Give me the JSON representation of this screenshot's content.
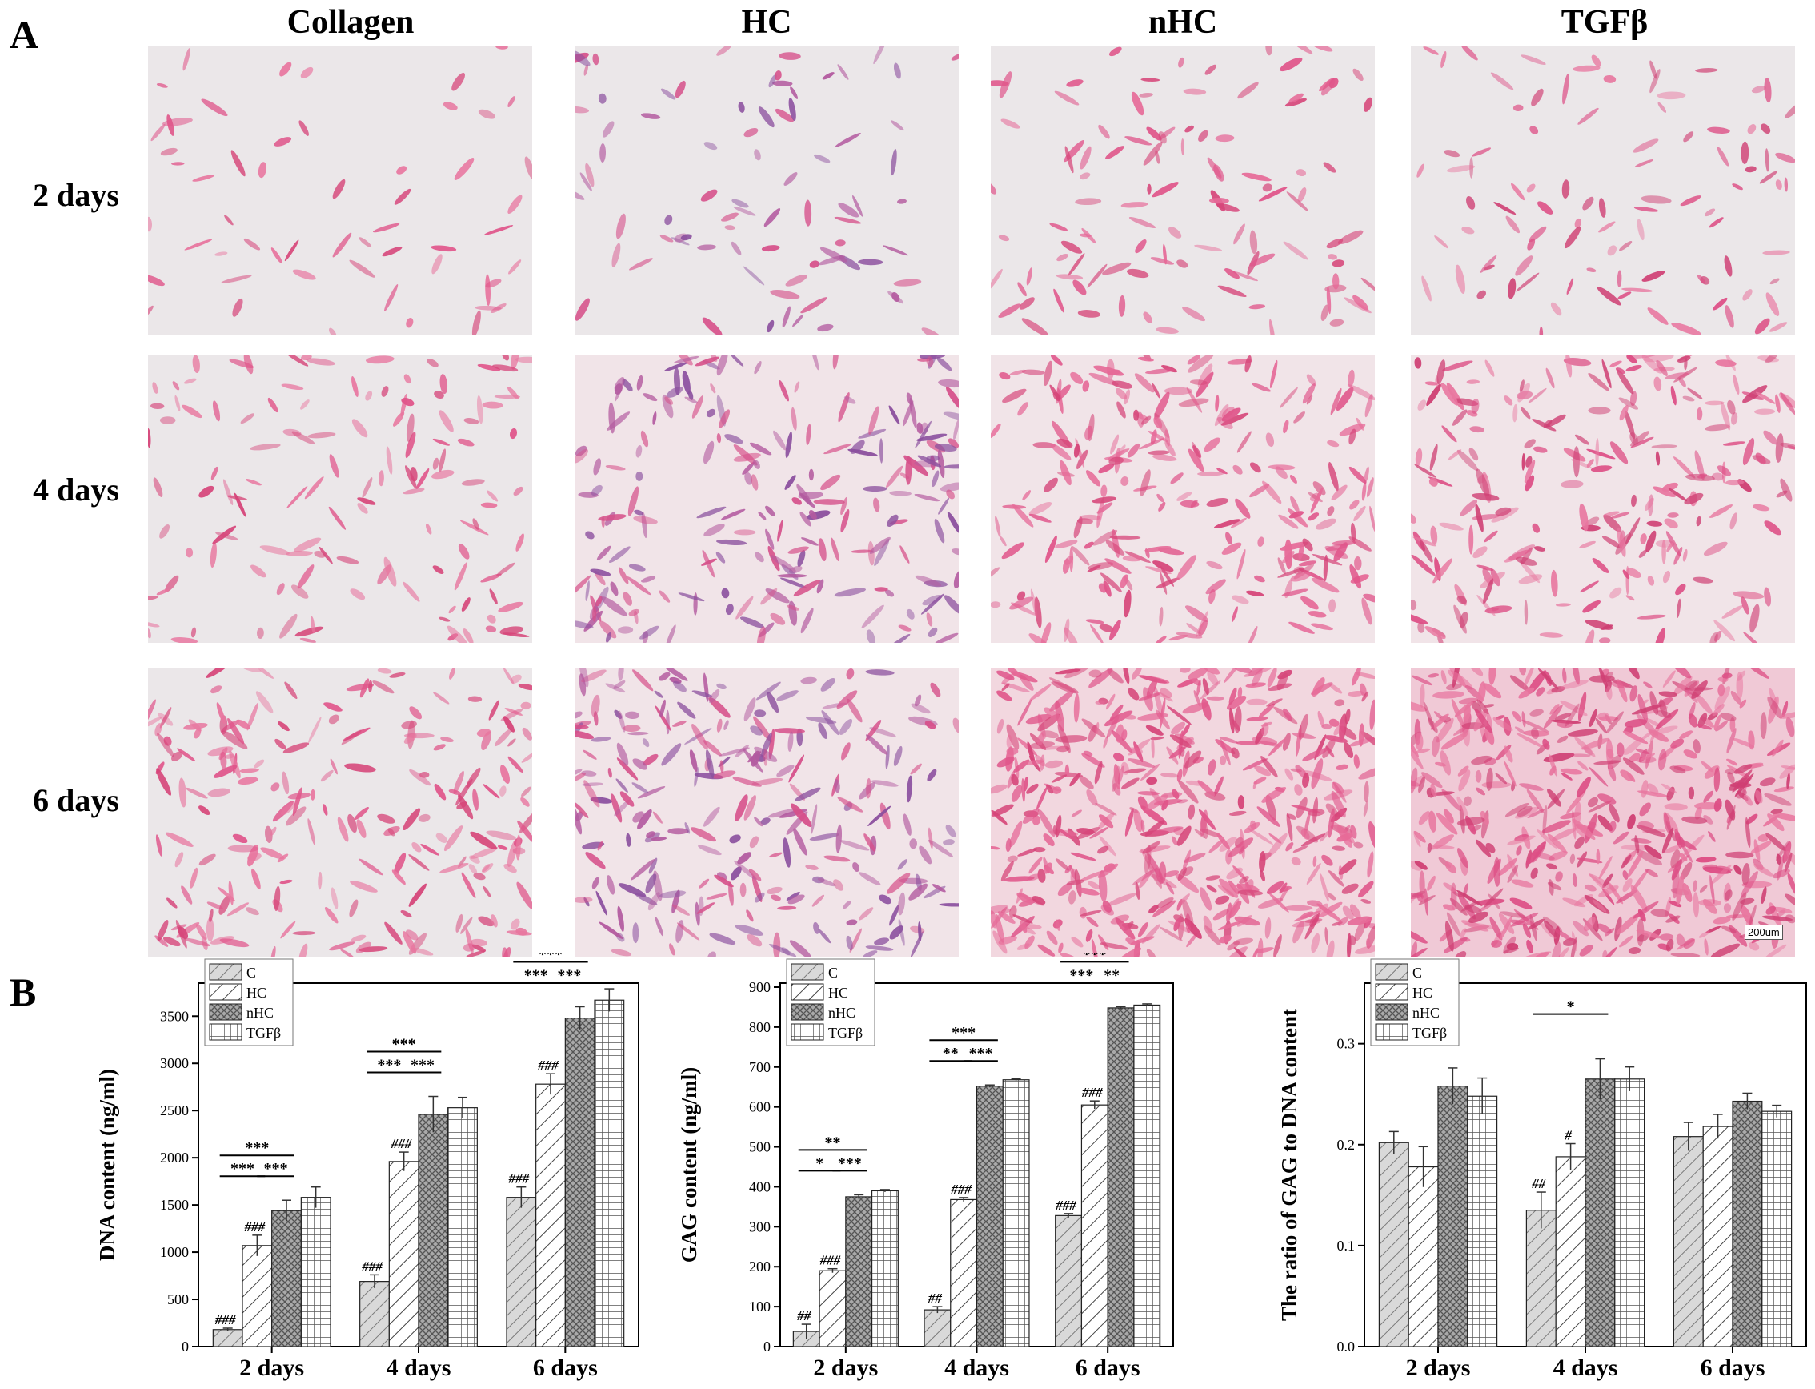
{
  "panel_labels": {
    "a": "A",
    "b": "B"
  },
  "columns": [
    "Collagen",
    "HC",
    "nHC",
    "TGFβ"
  ],
  "rows": [
    "2 days",
    "4 days",
    "6 days"
  ],
  "scale_bar_label": "200um",
  "chart_data": [
    {
      "type": "bar",
      "ylabel": "DNA content (ng/ml)",
      "categories": [
        "2 days",
        "4 days",
        "6 days"
      ],
      "ylim": [
        0,
        3850
      ],
      "yticks": [
        0,
        500,
        1000,
        1500,
        2000,
        2500,
        3000,
        3500
      ],
      "legend": [
        "C",
        "HC",
        "nHC",
        "TGFβ"
      ],
      "legend_position": "top-left",
      "series": [
        {
          "name": "C",
          "values": [
            180,
            690,
            1580
          ],
          "errors": [
            15,
            70,
            110
          ],
          "labels": [
            "###",
            "###",
            "###"
          ]
        },
        {
          "name": "HC",
          "values": [
            1070,
            1960,
            2780
          ],
          "errors": [
            110,
            100,
            110
          ],
          "labels": [
            "###",
            "###",
            "###"
          ]
        },
        {
          "name": "nHC",
          "values": [
            1440,
            2460,
            3480
          ],
          "errors": [
            110,
            190,
            120
          ],
          "labels": [
            "",
            "",
            ""
          ]
        },
        {
          "name": "TGFβ",
          "values": [
            1580,
            2530,
            3670
          ],
          "errors": [
            110,
            110,
            120
          ],
          "labels": [
            "",
            "",
            ""
          ]
        }
      ],
      "significance": [
        {
          "group": 0,
          "from": 0,
          "to": 2,
          "label": "***",
          "level": 1
        },
        {
          "group": 0,
          "from": 0,
          "to": 1,
          "label": "***",
          "level": 0
        },
        {
          "group": 0,
          "from": 1,
          "to": 2,
          "label": "***",
          "level": 0
        },
        {
          "group": 1,
          "from": 0,
          "to": 2,
          "label": "***",
          "level": 1
        },
        {
          "group": 1,
          "from": 0,
          "to": 1,
          "label": "***",
          "level": 0
        },
        {
          "group": 1,
          "from": 1,
          "to": 2,
          "label": "***",
          "level": 0
        },
        {
          "group": 2,
          "from": 0,
          "to": 2,
          "label": "***",
          "level": 1
        },
        {
          "group": 2,
          "from": 0,
          "to": 1,
          "label": "***",
          "level": 0
        },
        {
          "group": 2,
          "from": 1,
          "to": 2,
          "label": "***",
          "level": 0
        }
      ]
    },
    {
      "type": "bar",
      "ylabel": "GAG content (ng/ml)",
      "categories": [
        "2 days",
        "4 days",
        "6 days"
      ],
      "ylim": [
        0,
        910
      ],
      "yticks": [
        0,
        100,
        200,
        300,
        400,
        500,
        600,
        700,
        800,
        900
      ],
      "legend": [
        "C",
        "HC",
        "nHC",
        "TGFβ"
      ],
      "legend_position": "top-left",
      "series": [
        {
          "name": "C",
          "values": [
            38,
            92,
            328
          ],
          "errors": [
            18,
            8,
            5
          ],
          "labels": [
            "##",
            "##",
            "###"
          ]
        },
        {
          "name": "HC",
          "values": [
            190,
            368,
            605
          ],
          "errors": [
            5,
            5,
            10
          ],
          "labels": [
            "###",
            "###",
            "###"
          ]
        },
        {
          "name": "nHC",
          "values": [
            375,
            652,
            848
          ],
          "errors": [
            5,
            3,
            3
          ],
          "labels": [
            "",
            "",
            ""
          ]
        },
        {
          "name": "TGFβ",
          "values": [
            390,
            668,
            855
          ],
          "errors": [
            3,
            2,
            3
          ],
          "labels": [
            "",
            "",
            ""
          ]
        }
      ],
      "significance": [
        {
          "group": 0,
          "from": 0,
          "to": 2,
          "label": "**",
          "level": 1
        },
        {
          "group": 0,
          "from": 0,
          "to": 1,
          "label": "*",
          "level": 0
        },
        {
          "group": 0,
          "from": 1,
          "to": 2,
          "label": "***",
          "level": 0
        },
        {
          "group": 1,
          "from": 0,
          "to": 2,
          "label": "***",
          "level": 1
        },
        {
          "group": 1,
          "from": 0,
          "to": 1,
          "label": "**",
          "level": 0
        },
        {
          "group": 1,
          "from": 1,
          "to": 2,
          "label": "***",
          "level": 0
        },
        {
          "group": 2,
          "from": 0,
          "to": 2,
          "label": "***",
          "level": 1
        },
        {
          "group": 2,
          "from": 0,
          "to": 1,
          "label": "***",
          "level": 0
        },
        {
          "group": 2,
          "from": 1,
          "to": 2,
          "label": "**",
          "level": 0
        }
      ]
    },
    {
      "type": "bar",
      "ylabel": "The ratio of GAG to DNA content",
      "categories": [
        "2 days",
        "4 days",
        "6 days"
      ],
      "ylim": [
        0,
        0.36
      ],
      "yticks": [
        0.0,
        0.1,
        0.2,
        0.3
      ],
      "ytick_labels": [
        "0.0",
        "0.1",
        "0.2",
        "0.3"
      ],
      "legend": [
        "C",
        "HC",
        "nHC",
        "TGFβ"
      ],
      "legend_position": "top-left",
      "series": [
        {
          "name": "C",
          "values": [
            0.202,
            0.135,
            0.208
          ],
          "errors": [
            0.011,
            0.018,
            0.014
          ],
          "labels": [
            "",
            "##",
            ""
          ]
        },
        {
          "name": "HC",
          "values": [
            0.178,
            0.188,
            0.218
          ],
          "errors": [
            0.02,
            0.013,
            0.012
          ],
          "labels": [
            "",
            "#",
            ""
          ]
        },
        {
          "name": "nHC",
          "values": [
            0.258,
            0.265,
            0.243
          ],
          "errors": [
            0.018,
            0.02,
            0.008
          ],
          "labels": [
            "",
            "",
            ""
          ]
        },
        {
          "name": "TGFβ",
          "values": [
            0.248,
            0.265,
            0.233
          ],
          "errors": [
            0.018,
            0.012,
            0.006
          ],
          "labels": [
            "",
            "",
            ""
          ]
        }
      ],
      "significance": [
        {
          "group": 1,
          "from": 0,
          "to": 2,
          "label": "*",
          "level": 1
        }
      ]
    }
  ]
}
